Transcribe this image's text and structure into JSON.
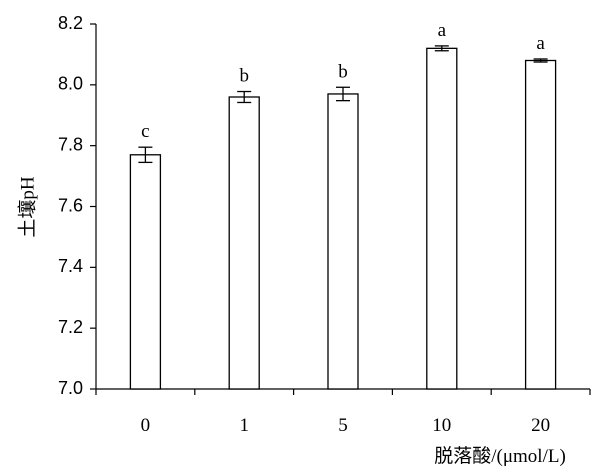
{
  "chart_data": {
    "type": "bar",
    "categories": [
      "0",
      "1",
      "5",
      "10",
      "20"
    ],
    "values": [
      7.77,
      7.96,
      7.97,
      8.12,
      8.08
    ],
    "errors": [
      0.025,
      0.018,
      0.022,
      0.008,
      0.005
    ],
    "significance": [
      "c",
      "b",
      "b",
      "a",
      "a"
    ],
    "title": "",
    "xlabel": "脱落酸/(μmol/L)",
    "ylabel": "土壤pH",
    "ylim": [
      7.0,
      8.2
    ],
    "yticks": [
      "7.0",
      "7.2",
      "7.4",
      "7.6",
      "7.8",
      "8.0",
      "8.2"
    ],
    "grid": false,
    "legend": "none",
    "bar_fill": "#ffffff",
    "bar_stroke": "#000000"
  }
}
